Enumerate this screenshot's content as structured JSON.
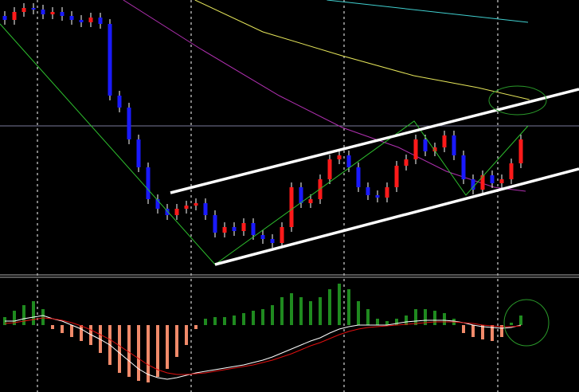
{
  "chart_data": [
    {
      "type": "candlestick",
      "ylim": [
        0,
        345
      ],
      "up_color": "#ff1a1a",
      "down_color": "#1a1aff",
      "wick_color": "#ffffff",
      "open": [
        325,
        320,
        330,
        335,
        333,
        327,
        330,
        325,
        320,
        317,
        323,
        315,
        225,
        210,
        170,
        135,
        95,
        83,
        75,
        83,
        87,
        90,
        75,
        53,
        60,
        55,
        65,
        50,
        45,
        40,
        60,
        110,
        90,
        95,
        120,
        145,
        150,
        135,
        110,
        100,
        97,
        110,
        137,
        145,
        170,
        155,
        160,
        175,
        150,
        120,
        107,
        125,
        115,
        120,
        140
      ],
      "high": [
        331,
        336,
        341,
        341,
        339,
        336,
        336,
        331,
        326,
        329,
        329,
        321,
        231,
        216,
        176,
        141,
        101,
        89,
        89,
        93,
        96,
        96,
        81,
        66,
        66,
        71,
        71,
        56,
        51,
        66,
        116,
        116,
        101,
        126,
        151,
        156,
        156,
        141,
        116,
        106,
        116,
        143,
        151,
        176,
        176,
        166,
        181,
        181,
        156,
        126,
        131,
        131,
        126,
        146,
        176
      ],
      "low": [
        314,
        314,
        324,
        327,
        321,
        321,
        319,
        314,
        311,
        311,
        309,
        219,
        204,
        164,
        129,
        89,
        77,
        69,
        69,
        77,
        81,
        69,
        47,
        47,
        49,
        49,
        44,
        39,
        34,
        34,
        54,
        84,
        84,
        89,
        114,
        139,
        129,
        104,
        94,
        91,
        91,
        104,
        131,
        139,
        149,
        149,
        154,
        144,
        114,
        101,
        101,
        109,
        109,
        114,
        134
      ],
      "close": [
        320,
        330,
        335,
        333,
        327,
        330,
        325,
        320,
        317,
        323,
        315,
        225,
        210,
        170,
        135,
        95,
        83,
        75,
        83,
        87,
        90,
        75,
        53,
        60,
        55,
        65,
        50,
        45,
        40,
        60,
        110,
        90,
        95,
        120,
        145,
        150,
        135,
        110,
        100,
        97,
        110,
        137,
        145,
        170,
        155,
        160,
        175,
        150,
        120,
        107,
        125,
        115,
        120,
        140,
        170
      ],
      "lines": [
        {
          "color": "#e6e65a",
          "x": [
            19.9,
            27,
            35.3,
            42.8,
            49.5,
            54.9
          ],
          "values": [
            345,
            305,
            275,
            250,
            235,
            220
          ]
        },
        {
          "color": "#b030b0",
          "x": [
            12.4,
            20.3,
            28.7,
            35.3,
            41.2,
            46.2,
            51.2,
            54.5
          ],
          "values": [
            345,
            285,
            225,
            185,
            160,
            130,
            110,
            105
          ]
        },
        {
          "color": "#40d0d0",
          "x": [
            33.7,
            54.75
          ],
          "values": [
            345,
            317
          ]
        }
      ]
    },
    {
      "type": "bar",
      "ylim": [
        -82,
        58
      ],
      "pos_color": "#1f8a1f",
      "neg_color": "#f08a6a",
      "values": [
        10,
        18,
        25,
        30,
        20,
        -5,
        -10,
        -15,
        -20,
        -25,
        -35,
        -50,
        -60,
        -65,
        -70,
        -72,
        -65,
        -55,
        -40,
        -25,
        -5,
        8,
        10,
        10,
        12,
        15,
        18,
        20,
        25,
        35,
        40,
        35,
        30,
        35,
        45,
        52,
        45,
        30,
        20,
        8,
        5,
        8,
        12,
        20,
        20,
        18,
        15,
        8,
        -10,
        -15,
        -18,
        -20,
        -15,
        3,
        12
      ],
      "lines": [
        {
          "color": "#ffffff",
          "values": [
            5,
            5,
            8,
            10,
            12,
            8,
            5,
            0,
            -5,
            -12,
            -18,
            -25,
            -35,
            -45,
            -55,
            -62,
            -66,
            -68,
            -66,
            -63,
            -60,
            -58,
            -56,
            -54,
            -52,
            -50,
            -47,
            -44,
            -40,
            -35,
            -30,
            -25,
            -20,
            -16,
            -10,
            -5,
            -2,
            0,
            0,
            0,
            0,
            2,
            4,
            5,
            6,
            6,
            6,
            5,
            3,
            0,
            -2,
            -3,
            -4,
            -3,
            0
          ]
        },
        {
          "color": "#e01010",
          "values": [
            2,
            3,
            5,
            7,
            9,
            8,
            6,
            3,
            -1,
            -6,
            -12,
            -18,
            -26,
            -34,
            -42,
            -50,
            -56,
            -60,
            -62,
            -62,
            -61,
            -60,
            -58,
            -56,
            -54,
            -52,
            -50,
            -47,
            -44,
            -40,
            -36,
            -31,
            -26,
            -22,
            -17,
            -12,
            -8,
            -5,
            -3,
            -2,
            -1,
            0,
            1,
            2,
            3,
            4,
            4,
            4,
            3,
            2,
            0,
            -1,
            -2,
            -2,
            -1
          ]
        }
      ]
    }
  ]
}
